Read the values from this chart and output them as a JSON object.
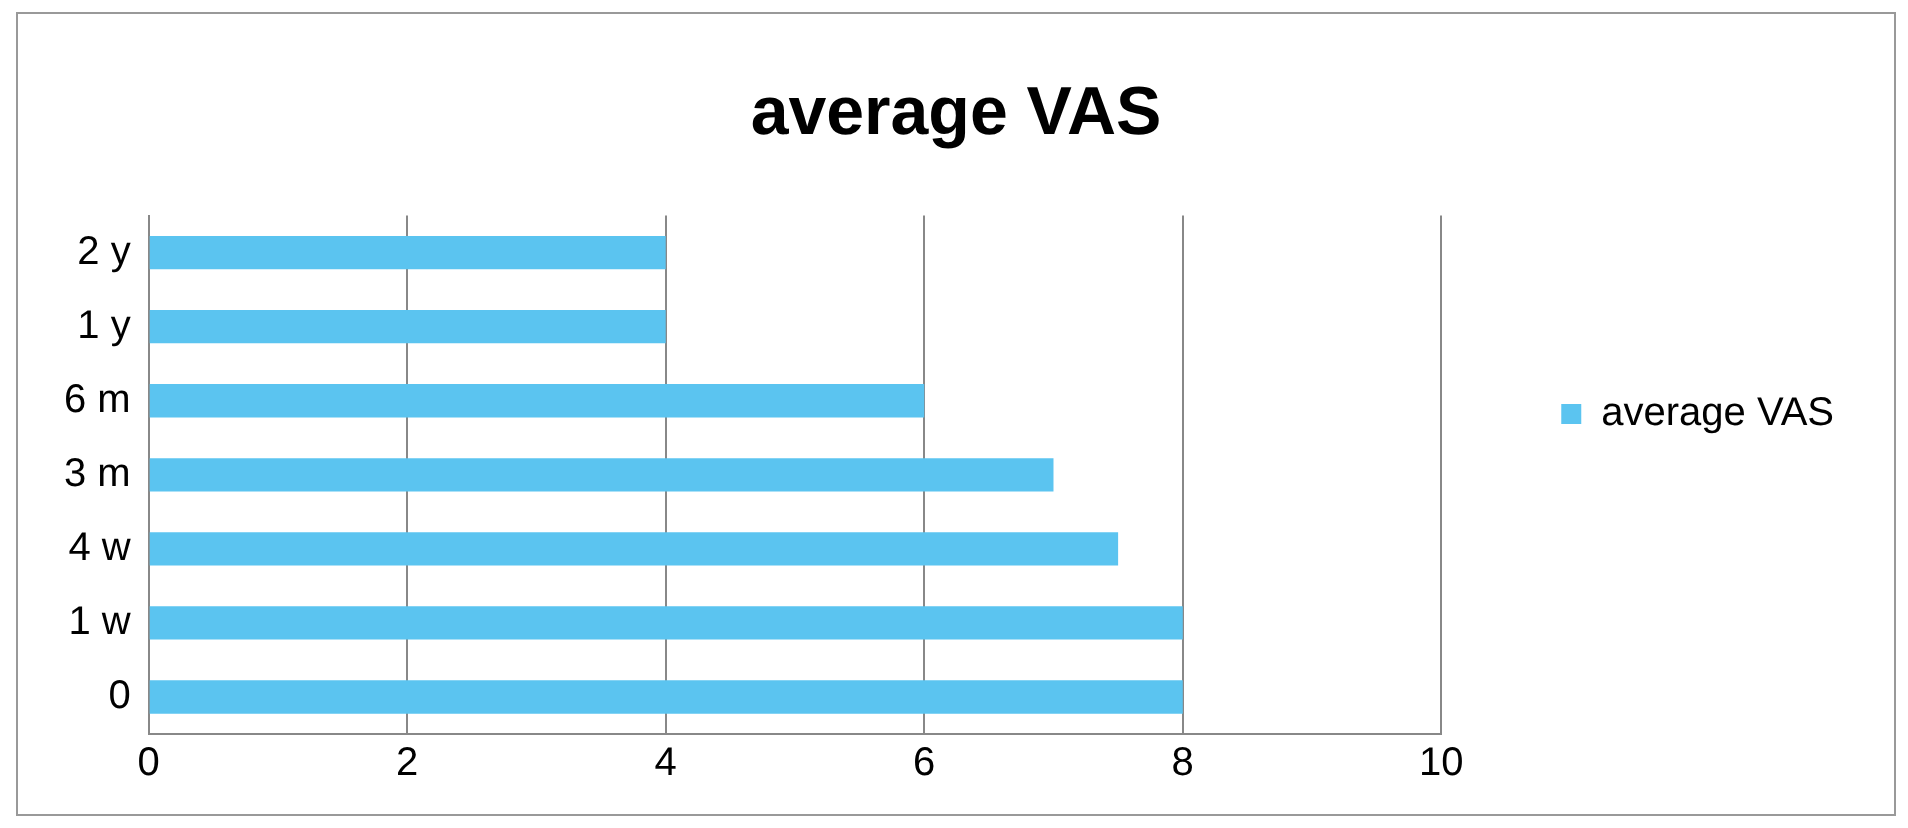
{
  "chart_data": {
    "type": "bar",
    "orientation": "horizontal",
    "title": "average VAS",
    "categories": [
      "2 y",
      "1 y",
      "6 m",
      "3 m",
      "4 w",
      "1 w",
      "0"
    ],
    "series": [
      {
        "name": "average VAS",
        "color": "#5bc4f0",
        "values": [
          4,
          4,
          6,
          7,
          7.5,
          8,
          8
        ]
      }
    ],
    "xlim": [
      0,
      10
    ],
    "xticks": [
      0,
      2,
      4,
      6,
      8,
      10
    ],
    "grid": "x",
    "legend": "right"
  }
}
